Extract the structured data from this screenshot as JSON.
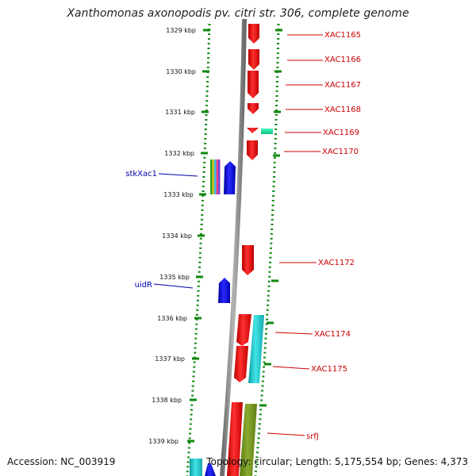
{
  "header": {
    "title": "Xanthomonas axonopodis pv. citri str. 306, complete genome"
  },
  "footer": {
    "accession": "Accession: NC_003919",
    "summary": "Topology: circular; Length: 5,175,554 bp; Genes: 4,373"
  },
  "ruler": {
    "ticks": [
      "1329 kbp",
      "1330 kbp",
      "1331 kbp",
      "1332 kbp",
      "1333 kbp",
      "1334 kbp",
      "1335 kbp",
      "1336 kbp",
      "1337 kbp",
      "1338 kbp",
      "1339 kbp"
    ]
  },
  "labels": {
    "right": [
      "XAC1165",
      "XAC1166",
      "XAC1167",
      "XAC1168",
      "XAC1169",
      "XAC1170",
      "XAC1172",
      "XAC1174",
      "XAC1175",
      "srfJ"
    ],
    "left": [
      "stkXac1",
      "uidR"
    ]
  },
  "colors": {
    "gene_red": "#ee1111",
    "gene_blue": "#1111dd",
    "gene_cyan": "#22c4c8",
    "gene_teal": "#22dd99",
    "gene_olive": "#7a9a22",
    "backbone": "#888888",
    "ticks": "#118811",
    "label_red": "#cc0000",
    "label_blue": "#0000aa"
  }
}
